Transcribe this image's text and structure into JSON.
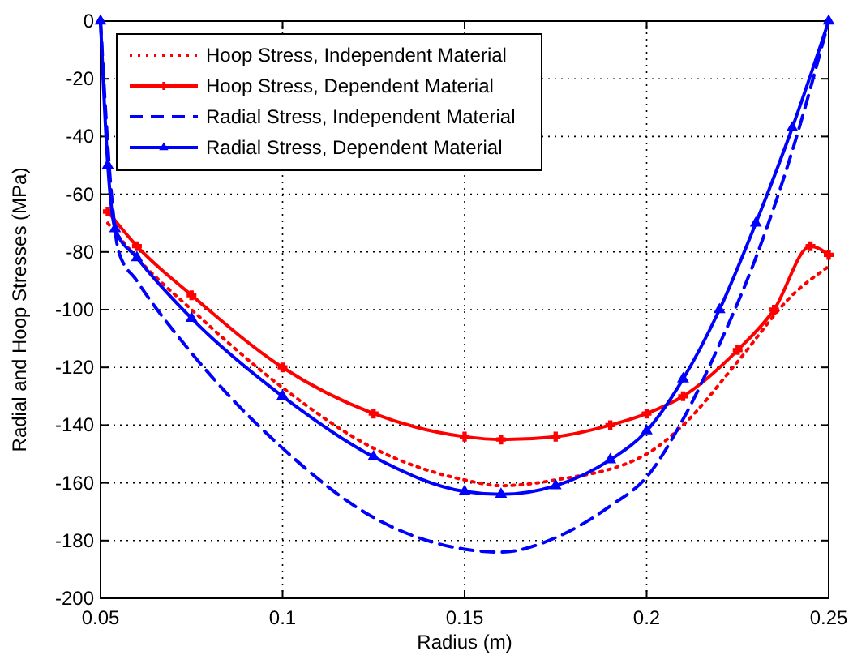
{
  "chart_data": {
    "type": "line",
    "xlabel": "Radius (m)",
    "ylabel": "Radial and Hoop Stresses (MPa)",
    "xlim": [
      0.05,
      0.25
    ],
    "xticks": [
      0.05,
      0.1,
      0.15,
      0.2,
      0.25
    ],
    "ylim": [
      -200,
      0
    ],
    "yticks": [
      -200,
      -180,
      -160,
      -140,
      -120,
      -100,
      -80,
      -60,
      -40,
      -20,
      0
    ],
    "grid": true,
    "legend": "top left",
    "series": [
      {
        "name": "Hoop Stress, Independent Material",
        "color": "#ff0000",
        "line_style": "dotted",
        "marker": "none",
        "x": [
          0.052,
          0.06,
          0.075,
          0.1,
          0.125,
          0.15,
          0.16,
          0.175,
          0.2,
          0.21,
          0.225,
          0.24,
          0.25
        ],
        "values": [
          -70,
          -82,
          -100,
          -127,
          -148,
          -159,
          -161,
          -159,
          -150,
          -140,
          -118,
          -95,
          -85
        ]
      },
      {
        "name": "Hoop Stress, Dependent Material",
        "color": "#ff0000",
        "line_style": "solid",
        "marker": "cross",
        "x": [
          0.052,
          0.06,
          0.075,
          0.1,
          0.125,
          0.15,
          0.16,
          0.175,
          0.19,
          0.2,
          0.21,
          0.225,
          0.235,
          0.245,
          0.25
        ],
        "values": [
          -66,
          -78,
          -95,
          -120,
          -136,
          -144,
          -145,
          -144,
          -140,
          -136,
          -130,
          -114,
          -100,
          -78,
          -81
        ]
      },
      {
        "name": "Radial Stress, Independent Material",
        "color": "#0000ff",
        "line_style": "dashed",
        "marker": "none",
        "x": [
          0.05,
          0.053,
          0.055,
          0.06,
          0.075,
          0.1,
          0.125,
          0.15,
          0.16,
          0.175,
          0.19,
          0.2,
          0.21,
          0.22,
          0.23,
          0.24,
          0.25
        ],
        "values": [
          0,
          -60,
          -80,
          -90,
          -115,
          -148,
          -172,
          -183,
          -184,
          -179,
          -168,
          -158,
          -138,
          -112,
          -82,
          -45,
          0
        ]
      },
      {
        "name": "Radial Stress, Dependent Material",
        "color": "#0000ff",
        "line_style": "solid",
        "marker": "triangle",
        "x": [
          0.05,
          0.052,
          0.054,
          0.06,
          0.075,
          0.1,
          0.125,
          0.15,
          0.16,
          0.175,
          0.19,
          0.2,
          0.21,
          0.22,
          0.23,
          0.24,
          0.25
        ],
        "values": [
          0,
          -50,
          -72,
          -82,
          -103,
          -130,
          -151,
          -163,
          -164,
          -161,
          -152,
          -142,
          -124,
          -100,
          -70,
          -37,
          0
        ]
      }
    ]
  }
}
